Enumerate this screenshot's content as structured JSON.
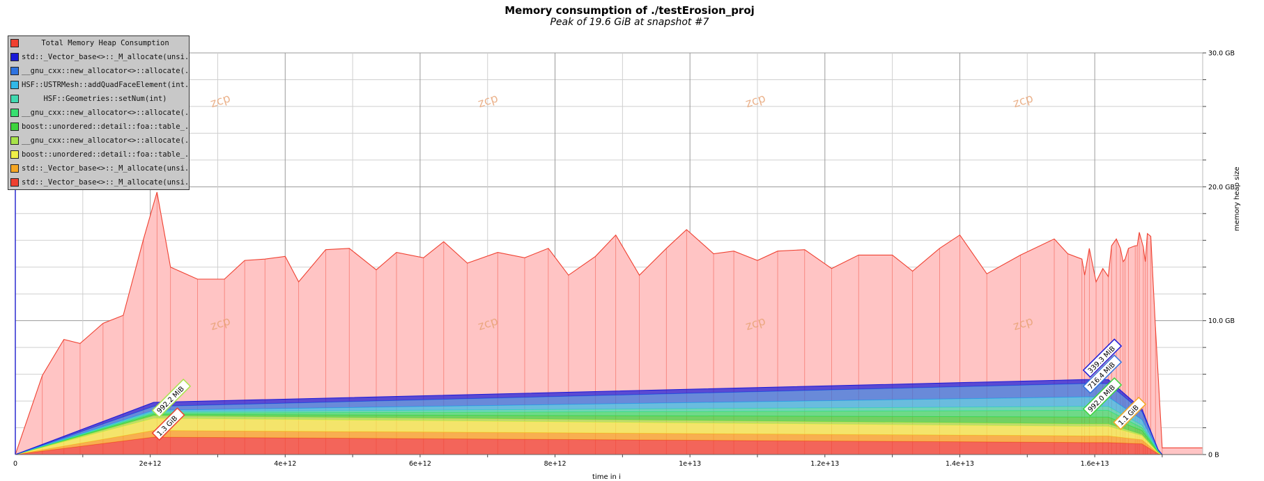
{
  "chart_data": {
    "type": "area",
    "title": "Memory consumption of ./testErosion_proj",
    "subtitle": "Peak of 19.6 GiB at snapshot #7",
    "xlabel": "time in i",
    "ylabel": "memory heap size",
    "xlim": [
      0,
      17600000000000.0
    ],
    "ylim": [
      0,
      30
    ],
    "x_ticks": [
      {
        "value": 0,
        "label": "0"
      },
      {
        "value": 2000000000000.0,
        "label": "2e+12"
      },
      {
        "value": 4000000000000.0,
        "label": "4e+12"
      },
      {
        "value": 6000000000000.0,
        "label": "6e+12"
      },
      {
        "value": 8000000000000.0,
        "label": "8e+12"
      },
      {
        "value": 10000000000000.0,
        "label": "1e+13"
      },
      {
        "value": 12000000000000.0,
        "label": "1.2e+13"
      },
      {
        "value": 14000000000000.0,
        "label": "1.4e+13"
      },
      {
        "value": 16000000000000.0,
        "label": "1.6e+13"
      }
    ],
    "y_ticks": [
      {
        "value": 0,
        "label": "0 B"
      },
      {
        "value": 10,
        "label": "10.0 GB"
      },
      {
        "value": 20,
        "label": "20.0 GB"
      },
      {
        "value": 30,
        "label": "30.0 GB"
      }
    ],
    "grid": true,
    "legend_position": "top-left",
    "watermark": "zcp",
    "total": {
      "name": "Total Memory Heap Consumption",
      "color": "#ef4030",
      "fill": "#ffc4c4",
      "x": [
        0,
        400000000000.0,
        720000000000.0,
        960000000000.0,
        1300000000000.0,
        1600000000000.0,
        1900000000000.0,
        2100000000000.0,
        2300000000000.0,
        2700000000000.0,
        3100000000000.0,
        3400000000000.0,
        3700000000000.0,
        4000000000000.0,
        4200000000000.0,
        4600000000000.0,
        4950000000000.0,
        5350000000000.0,
        5650000000000.0,
        6050000000000.0,
        6350000000000.0,
        6700000000000.0,
        7150000000000.0,
        7550000000000.0,
        7900000000000.0,
        8200000000000.0,
        8600000000000.0,
        8900000000000.0,
        9250000000000.0,
        9650000000000.0,
        9950000000000.0,
        10350000000000.0,
        10650000000000.0,
        11000000000000.0,
        11300000000000.0,
        11700000000000.0,
        12100000000000.0,
        12500000000000.0,
        13000000000000.0,
        13300000000000.0,
        13700000000000.0,
        14000000000000.0,
        14400000000000.0,
        14900000000000.0,
        15400000000000.0,
        15600000000000.0,
        15810000000000.0,
        15850000000000.0,
        15920000000000.0,
        16020000000000.0,
        16120000000000.0,
        16200000000000.0,
        16250000000000.0,
        16320000000000.0,
        16380000000000.0,
        16420000000000.0,
        16450000000000.0,
        16500000000000.0,
        16600000000000.0,
        16630000000000.0,
        16660000000000.0,
        16720000000000.0,
        16750000000000.0,
        16780000000000.0,
        16830000000000.0,
        16900000000000.0,
        17000000000000.0,
        17600000000000.0
      ],
      "y": [
        0,
        5.9,
        8.6,
        8.3,
        9.8,
        10.4,
        16.1,
        19.6,
        14.0,
        13.1,
        13.1,
        14.5,
        14.6,
        14.8,
        12.9,
        15.3,
        15.4,
        13.8,
        15.1,
        14.7,
        15.9,
        14.3,
        15.1,
        14.7,
        15.4,
        13.4,
        14.8,
        16.4,
        13.4,
        15.4,
        16.8,
        15.0,
        15.2,
        14.5,
        15.2,
        15.3,
        13.9,
        14.9,
        14.9,
        13.7,
        15.4,
        16.4,
        13.5,
        14.9,
        16.1,
        15.0,
        14.6,
        13.4,
        15.4,
        12.9,
        13.9,
        13.3,
        15.6,
        16.1,
        15.4,
        14.4,
        14.6,
        15.4,
        15.6,
        15.6,
        16.6,
        15.5,
        14.4,
        16.5,
        16.3,
        9.5,
        0.5,
        0.5
      ]
    },
    "x": [
      0,
      2050000000000.0,
      15850000000000.0,
      16200000000000.0,
      16700000000000.0,
      16940000000000.0,
      17000000000000.0
    ],
    "series": [
      {
        "name": "std::_Vector_base<>::_M_allocate(unsi...",
        "color": "#ef4030",
        "values": [
          0,
          1.3,
          0.9,
          0.9,
          0.8,
          0.05,
          0
        ]
      },
      {
        "name": "std::_Vector_base<>::_M_allocate(unsi...",
        "color": "#f5a623",
        "values": [
          0,
          0.5,
          0.5,
          0.5,
          0.3,
          0.05,
          0
        ]
      },
      {
        "name": "boost::unordered::detail::foa::table_...",
        "color": "#f0f048",
        "values": [
          0,
          0.9,
          0.7,
          0.7,
          0.3,
          0.05,
          0
        ]
      },
      {
        "name": "__gnu_cxx::new_allocator<>::allocate(...",
        "color": "#a8e34a",
        "values": [
          0,
          0.2,
          0.2,
          0.2,
          0.1,
          0.02,
          0
        ]
      },
      {
        "name": "boost::unordered::detail::foa::table_...",
        "color": "#3dd43d",
        "values": [
          0,
          0.1,
          0.5,
          0.5,
          0.3,
          0.05,
          0
        ]
      },
      {
        "name": "__gnu_cxx::new_allocator<>::allocate(...",
        "color": "#38e070",
        "values": [
          0,
          0.1,
          0.5,
          0.5,
          0.2,
          0.03,
          0
        ]
      },
      {
        "name": "HSF::Geometries::setNum(int)",
        "color": "#40d9b0",
        "values": [
          0,
          0.1,
          0.3,
          0.3,
          0.2,
          0.02,
          0
        ]
      },
      {
        "name": "HSF::USTRMesh::addQuadFaceElement(int...",
        "color": "#31b8e8",
        "values": [
          0,
          0.1,
          0.7,
          0.7,
          0.4,
          0.03,
          0
        ]
      },
      {
        "name": "__gnu_cxx::new_allocator<>::allocate(...",
        "color": "#2f73e0",
        "values": [
          0,
          0.3,
          1.0,
          1.0,
          0.6,
          0.05,
          0
        ]
      },
      {
        "name": "std::_Vector_base<>::_M_allocate(unsi...",
        "color": "#1a1ad8",
        "values": [
          0,
          0.3,
          0.3,
          0.3,
          0.2,
          0.02,
          0
        ]
      }
    ],
    "annotations": [
      {
        "text": "992.2 MiB",
        "x": 2050000000000.0,
        "y": 2.9,
        "color": "#a8e34a"
      },
      {
        "text": "1.3 GiB",
        "x": 2050000000000.0,
        "y": 1.2,
        "color": "#ef4030"
      },
      {
        "text": "339.3 MiB",
        "x": 15850000000000.0,
        "y": 5.9,
        "color": "#1a1ad8"
      },
      {
        "text": "716.4 MiB",
        "x": 15850000000000.0,
        "y": 4.7,
        "color": "#2f73e0"
      },
      {
        "text": "992.0 MiB",
        "x": 15850000000000.0,
        "y": 3.0,
        "color": "#3dd43d"
      },
      {
        "text": "1.1 GiB",
        "x": 16300000000000.0,
        "y": 2.0,
        "color": "#f5a623"
      }
    ],
    "legend": [
      {
        "label": "Total Memory Heap Consumption",
        "color": "#ef4030",
        "centered": true
      },
      {
        "label": "std::_Vector_base<>::_M_allocate(unsi...",
        "color": "#1a1ad8",
        "centered": false
      },
      {
        "label": "__gnu_cxx::new_allocator<>::allocate(...",
        "color": "#2f73e0",
        "centered": false
      },
      {
        "label": "HSF::USTRMesh::addQuadFaceElement(int...",
        "color": "#31b8e8",
        "centered": false
      },
      {
        "label": "HSF::Geometries::setNum(int)",
        "color": "#40d9b0",
        "centered": true
      },
      {
        "label": "__gnu_cxx::new_allocator<>::allocate(...",
        "color": "#38e070",
        "centered": false
      },
      {
        "label": "boost::unordered::detail::foa::table_...",
        "color": "#3dd43d",
        "centered": false
      },
      {
        "label": "__gnu_cxx::new_allocator<>::allocate(...",
        "color": "#a8e34a",
        "centered": false
      },
      {
        "label": "boost::unordered::detail::foa::table_...",
        "color": "#f0f048",
        "centered": false
      },
      {
        "label": "std::_Vector_base<>::_M_allocate(unsi...",
        "color": "#f5a623",
        "centered": false
      },
      {
        "label": "std::_Vector_base<>::_M_allocate(unsi...",
        "color": "#ef4030",
        "centered": false
      }
    ]
  }
}
